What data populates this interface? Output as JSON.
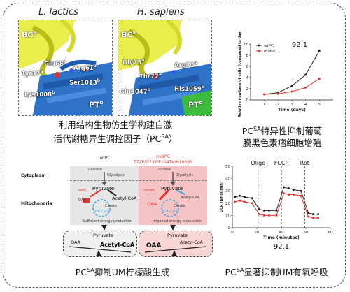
{
  "structures": {
    "left_title": "L. lactics",
    "right_title": "H. sapiens",
    "left_residues": [
      {
        "text": "Glu68",
        "sup": "a"
      },
      {
        "text": "Arg61",
        "sup": "a"
      },
      {
        "text": "Tyr37",
        "sup": "a"
      },
      {
        "text": "Ser1013",
        "sup": "b"
      },
      {
        "text": "Lys1008",
        "sup": "b"
      }
    ],
    "right_residues": [
      {
        "text": "Gly73",
        "sup": "a"
      },
      {
        "text": "Arg71",
        "sup": "a"
      },
      {
        "text": "Thr72",
        "sup": "a"
      },
      {
        "text": "Glu1047",
        "sup": "b"
      },
      {
        "text": "His1059",
        "sup": "b"
      }
    ],
    "chain_bc": "BC",
    "chain_bc_sup": "a",
    "chain_pt": "PT",
    "chain_pt_sup": "b"
  },
  "captions": {
    "top_left_line1": "利用结构生物仿生学构建自激",
    "top_left_line2": "活代谢糖异生调控因子（PC",
    "top_left_line2_sup": "SA",
    "top_left_line2_end": "）",
    "top_right_pre": "PC",
    "top_right_sup": "SA",
    "top_right_line1": "特异性抑制葡萄",
    "top_right_line2": "膜黑色素瘤细胞增殖",
    "bottom_left_pre": "PC",
    "bottom_left_sup": "SA",
    "bottom_left_text": "抑制UM柠檬酸生成",
    "bottom_right_pre": "PC",
    "bottom_right_sup": "SA",
    "bottom_right_text": "显著抑制UM有氧呼吸"
  },
  "pathway": {
    "wt_header": "wtPC",
    "mut_header_line1": "mutPC",
    "mut_header_line2": "T72E/G73Y/E1047K/H1059S",
    "cytoplasm": "Cytoplasm",
    "mitochondria": "Mitochondria",
    "glucose": "Glucose",
    "glycolysis": "Glycolysis",
    "pyruvate": "Pyruvate",
    "oaa": "OAA",
    "acetyl_coa": "Acetyl-CoA",
    "citrate": "Citrate",
    "tca": "TCA Cycle",
    "wt_pc": "wtPC",
    "mut_pc": "mutPC",
    "wt_result": "Sufficient energy production",
    "mut_result": "Impaired energy production"
  },
  "chart_data": [
    {
      "type": "line",
      "title": "92.1",
      "xlabel": "Time (days)",
      "ylabel": "Relative numbers of cells (compared to day 1)",
      "xlim": [
        0,
        6
      ],
      "ylim": [
        0,
        10
      ],
      "xticks": [
        1,
        2,
        3,
        4,
        5
      ],
      "yticks": [
        0,
        2,
        4,
        6,
        8,
        10
      ],
      "legend_position": "top-left",
      "series": [
        {
          "name": "wtPC",
          "color": "#222222",
          "x": [
            1,
            2,
            3,
            4,
            5
          ],
          "values": [
            1.0,
            1.3,
            2.5,
            4.5,
            8.8
          ]
        },
        {
          "name": "mutPC",
          "color": "#e5322d",
          "x": [
            1,
            2,
            3,
            4,
            5
          ],
          "values": [
            1.0,
            1.1,
            1.5,
            2.2,
            3.8
          ]
        }
      ]
    },
    {
      "type": "line",
      "title": "92.1",
      "xlabel": "Time (minutes)",
      "ylabel": "OCR (pmol/min)",
      "xlim": [
        0,
        80
      ],
      "ylim": [
        0,
        50
      ],
      "xticks": [
        0,
        20,
        40,
        60,
        80
      ],
      "yticks": [
        0,
        10,
        20,
        30,
        40,
        50
      ],
      "annotations": [
        {
          "text": "Oligo",
          "x": 21
        },
        {
          "text": "FCCP",
          "x": 40
        },
        {
          "text": "Rot",
          "x": 59
        }
      ],
      "series": [
        {
          "name": "wtPC",
          "color": "#222222",
          "x": [
            2,
            6,
            10,
            16,
            22,
            26,
            30,
            36,
            42,
            46,
            50,
            56,
            62,
            66,
            70
          ],
          "values": [
            25,
            26,
            25,
            24,
            15,
            14,
            14,
            14,
            33,
            32,
            31,
            30,
            12,
            11,
            11
          ]
        },
        {
          "name": "mutPC",
          "color": "#e5322d",
          "x": [
            2,
            6,
            10,
            16,
            22,
            26,
            30,
            36,
            42,
            46,
            50,
            56,
            62,
            66,
            70
          ],
          "values": [
            21,
            22,
            21,
            20,
            11,
            10,
            10,
            10,
            28,
            27,
            27,
            26,
            9,
            8,
            8
          ]
        }
      ]
    }
  ]
}
